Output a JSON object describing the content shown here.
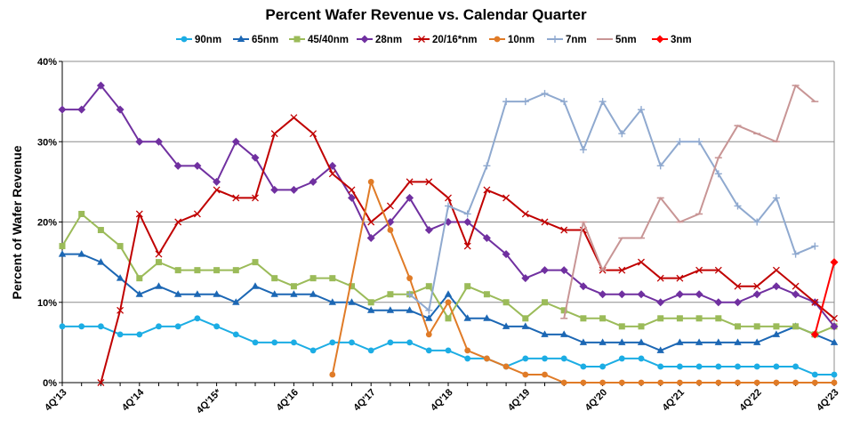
{
  "chart_data": {
    "type": "line",
    "title": "Percent Wafer Revenue vs. Calendar Quarter",
    "xlabel": "",
    "ylabel": "Percent of Wafer Revenue",
    "ylim": [
      0,
      40
    ],
    "yticks": [
      "0%",
      "10%",
      "20%",
      "30%",
      "40%"
    ],
    "grid": true,
    "legend_position": "top",
    "x_tick_labels": [
      {
        "index": 0,
        "label": "4Q'13"
      },
      {
        "index": 4,
        "label": "4Q'14"
      },
      {
        "index": 8,
        "label": "4Q'15*"
      },
      {
        "index": 12,
        "label": "4Q'16"
      },
      {
        "index": 16,
        "label": "4Q'17"
      },
      {
        "index": 20,
        "label": "4Q'18"
      },
      {
        "index": 24,
        "label": "4Q'19"
      },
      {
        "index": 28,
        "label": "4Q'20"
      },
      {
        "index": 32,
        "label": "4Q'21"
      },
      {
        "index": 36,
        "label": "4Q'22"
      },
      {
        "index": 40,
        "label": "4Q'23"
      }
    ],
    "num_points": 41,
    "series": [
      {
        "name": "90nm",
        "color": "#1CADE4",
        "marker": "circle",
        "start": 0,
        "values": [
          7,
          7,
          7,
          6,
          6,
          7,
          7,
          8,
          7,
          6,
          5,
          5,
          5,
          4,
          5,
          5,
          4,
          5,
          5,
          4,
          4,
          3,
          3,
          2,
          3,
          3,
          3,
          2,
          2,
          3,
          3,
          2,
          2,
          2,
          2,
          2,
          2,
          2,
          2,
          1,
          1
        ]
      },
      {
        "name": "65nm",
        "color": "#1C67B4",
        "marker": "triangle",
        "start": 0,
        "values": [
          16,
          16,
          15,
          13,
          11,
          12,
          11,
          11,
          11,
          10,
          12,
          11,
          11,
          11,
          10,
          10,
          9,
          9,
          9,
          8,
          11,
          8,
          8,
          7,
          7,
          6,
          6,
          5,
          5,
          5,
          5,
          4,
          5,
          5,
          5,
          5,
          5,
          6,
          7,
          6,
          5
        ]
      },
      {
        "name": "45/40nm",
        "color": "#9BBB59",
        "marker": "square",
        "start": 0,
        "values": [
          17,
          21,
          19,
          17,
          13,
          15,
          14,
          14,
          14,
          14,
          15,
          13,
          12,
          13,
          13,
          12,
          10,
          11,
          11,
          12,
          8,
          12,
          11,
          10,
          8,
          10,
          9,
          8,
          8,
          7,
          7,
          8,
          8,
          8,
          8,
          7,
          7,
          7,
          7,
          6,
          7
        ]
      },
      {
        "name": "28nm",
        "color": "#7030A0",
        "marker": "diamond",
        "start": 0,
        "values": [
          34,
          34,
          37,
          34,
          30,
          30,
          27,
          27,
          25,
          30,
          28,
          24,
          24,
          25,
          27,
          23,
          18,
          20,
          23,
          19,
          20,
          20,
          18,
          16,
          13,
          14,
          14,
          12,
          11,
          11,
          11,
          10,
          11,
          11,
          10,
          10,
          11,
          12,
          11,
          10,
          7
        ]
      },
      {
        "name": "20/16*nm",
        "color": "#C00000",
        "marker": "x",
        "start": 0,
        "values": [
          null,
          null,
          0,
          9,
          21,
          16,
          20,
          21,
          24,
          23,
          23,
          31,
          33,
          31,
          26,
          24,
          20,
          22,
          25,
          25,
          23,
          17,
          24,
          23,
          21,
          20,
          19,
          19,
          14,
          14,
          15,
          13,
          13,
          14,
          14,
          12,
          12,
          14,
          12,
          10,
          8
        ]
      },
      {
        "name": "10nm",
        "color": "#E07B27",
        "marker": "circle",
        "start": 14,
        "values": [
          1,
          null,
          25,
          19,
          13,
          6,
          10,
          4,
          3,
          2,
          1,
          1,
          0,
          0,
          0,
          0,
          0,
          0,
          0,
          0,
          0,
          0,
          0,
          0,
          0,
          0,
          0
        ]
      },
      {
        "name": "7nm",
        "color": "#8FA9CF",
        "marker": "plus",
        "start": 18,
        "values": [
          11,
          9,
          22,
          21,
          27,
          35,
          35,
          36,
          35,
          29,
          35,
          31,
          34,
          27,
          30,
          30,
          26,
          22,
          20,
          23,
          16,
          17
        ]
      },
      {
        "name": "5nm",
        "color": "#C89595",
        "marker": "dash",
        "start": 26,
        "values": [
          8,
          20,
          14,
          18,
          18,
          23,
          20,
          21,
          28,
          32,
          31,
          30,
          37,
          35
        ]
      },
      {
        "name": "3nm",
        "color": "#FF0000",
        "marker": "diamond",
        "start": 39,
        "values": [
          6,
          15
        ]
      }
    ]
  }
}
